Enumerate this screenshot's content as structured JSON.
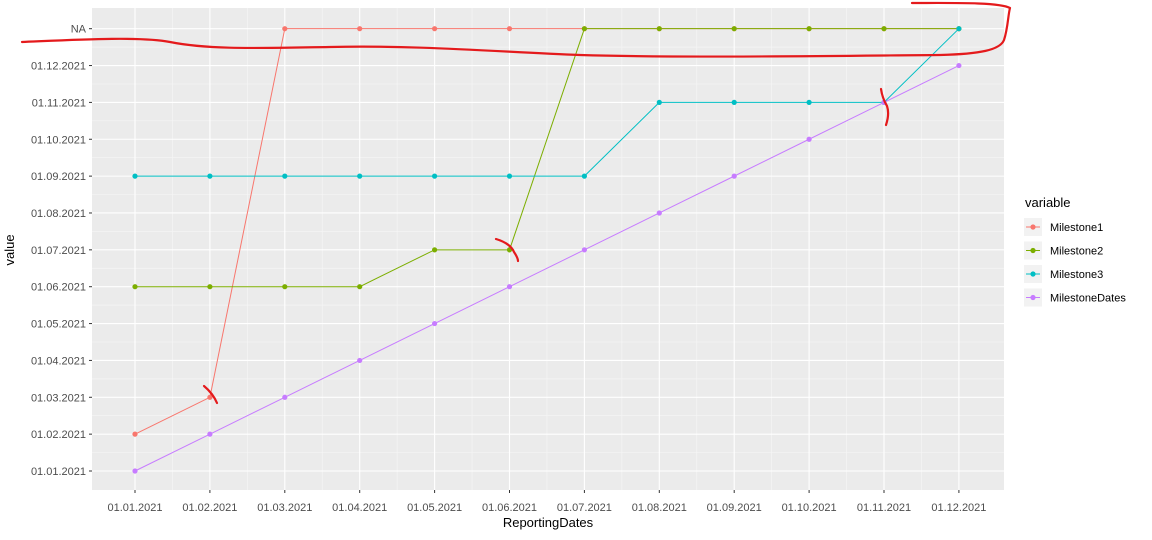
{
  "chart_data": {
    "type": "line",
    "xlabel": "ReportingDates",
    "ylabel": "value",
    "categories": [
      "01.01.2021",
      "01.02.2021",
      "01.03.2021",
      "01.04.2021",
      "01.05.2021",
      "01.06.2021",
      "01.07.2021",
      "01.08.2021",
      "01.09.2021",
      "01.10.2021",
      "01.11.2021",
      "01.12.2021"
    ],
    "y_levels": [
      "01.01.2021",
      "01.02.2021",
      "01.03.2021",
      "01.04.2021",
      "01.05.2021",
      "01.06.2021",
      "01.07.2021",
      "01.08.2021",
      "01.09.2021",
      "01.10.2021",
      "01.11.2021",
      "01.12.2021",
      "NA"
    ],
    "legend": {
      "title": "variable",
      "position": "right"
    },
    "grid": true,
    "series": [
      {
        "name": "Milestone1",
        "color": "#F8766D",
        "values": [
          "01.02.2021",
          "01.03.2021",
          "NA",
          "NA",
          "NA",
          "NA",
          "NA",
          "NA",
          "NA",
          "NA",
          "NA",
          "NA"
        ]
      },
      {
        "name": "Milestone2",
        "color": "#7CAE00",
        "values": [
          "01.06.2021",
          "01.06.2021",
          "01.06.2021",
          "01.06.2021",
          "01.07.2021",
          "01.07.2021",
          "NA",
          "NA",
          "NA",
          "NA",
          "NA",
          "NA"
        ]
      },
      {
        "name": "Milestone3",
        "color": "#00BFC4",
        "values": [
          "01.09.2021",
          "01.09.2021",
          "01.09.2021",
          "01.09.2021",
          "01.09.2021",
          "01.09.2021",
          "01.09.2021",
          "01.11.2021",
          "01.11.2021",
          "01.11.2021",
          "01.11.2021",
          "NA"
        ]
      },
      {
        "name": "MilestoneDates",
        "color": "#C77CFF",
        "values": [
          "01.01.2021",
          "01.02.2021",
          "01.03.2021",
          "01.04.2021",
          "01.05.2021",
          "01.06.2021",
          "01.07.2021",
          "01.08.2021",
          "01.09.2021",
          "01.10.2021",
          "01.11.2021",
          "01.12.2021"
        ]
      }
    ],
    "annotation_color": "#E41A1C"
  }
}
